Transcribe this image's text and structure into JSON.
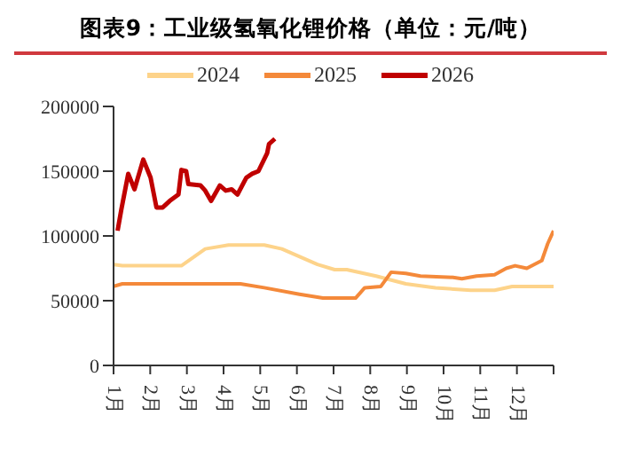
{
  "chart_data": {
    "type": "line",
    "title": "图表9：工业级氢氧化锂价格（单位：元/吨）",
    "legend": "top",
    "grid": false,
    "xlim": [
      1,
      13
    ],
    "xticks": [
      {
        "value": 1,
        "label": "1月"
      },
      {
        "value": 2,
        "label": "2月"
      },
      {
        "value": 3,
        "label": "3月"
      },
      {
        "value": 4,
        "label": "4月"
      },
      {
        "value": 5,
        "label": "5月"
      },
      {
        "value": 6,
        "label": "6月"
      },
      {
        "value": 7,
        "label": "7月"
      },
      {
        "value": 8,
        "label": "8月"
      },
      {
        "value": 9,
        "label": "9月"
      },
      {
        "value": 10,
        "label": "10月"
      },
      {
        "value": 11,
        "label": "11月"
      },
      {
        "value": 12,
        "label": "12月"
      },
      {
        "value": 13,
        "label": null
      }
    ],
    "ylim": [
      0,
      200000
    ],
    "yticks": [
      0,
      50000,
      100000,
      150000,
      200000
    ],
    "series": [
      {
        "name": "2024",
        "color": "#fdd38a",
        "x": [
          1,
          1.24,
          2.85,
          3.5,
          4.14,
          5.11,
          5.59,
          6.56,
          7.03,
          7.36,
          8.16,
          8.97,
          9.78,
          10.74,
          11.39,
          11.87,
          13
        ],
        "values": [
          78000,
          77000,
          77000,
          90000,
          93000,
          93000,
          90000,
          78000,
          74000,
          74000,
          69000,
          63000,
          60000,
          58000,
          58000,
          61000,
          61000
        ]
      },
      {
        "name": "2025",
        "color": "#f4893a",
        "x": [
          1,
          1.24,
          4.46,
          5.11,
          6.07,
          6.71,
          7.6,
          7.85,
          8.29,
          8.57,
          8.97,
          9.37,
          10.26,
          10.5,
          10.9,
          11.39,
          11.71,
          11.95,
          12.27,
          12.68,
          12.84,
          13
        ],
        "values": [
          61000,
          63000,
          63000,
          60000,
          55000,
          52000,
          52000,
          60000,
          61000,
          72000,
          71000,
          69000,
          68000,
          67000,
          69000,
          70000,
          75000,
          77000,
          75000,
          81000,
          94000,
          104000
        ]
      },
      {
        "name": "2026",
        "color": "#c00000",
        "x": [
          1.11,
          1.21,
          1.4,
          1.57,
          1.81,
          2.01,
          2.17,
          2.34,
          2.53,
          2.77,
          2.85,
          2.98,
          3.04,
          3.37,
          3.5,
          3.66,
          3.9,
          4.06,
          4.22,
          4.38,
          4.62,
          4.78,
          4.95,
          5.19,
          5.24,
          5.4
        ],
        "values": [
          104000,
          120000,
          148000,
          136000,
          159000,
          145000,
          122000,
          122000,
          127000,
          132000,
          151000,
          150000,
          140000,
          139000,
          135000,
          127000,
          139000,
          135000,
          136000,
          132000,
          145000,
          148000,
          150000,
          164000,
          171000,
          175000
        ]
      }
    ]
  }
}
